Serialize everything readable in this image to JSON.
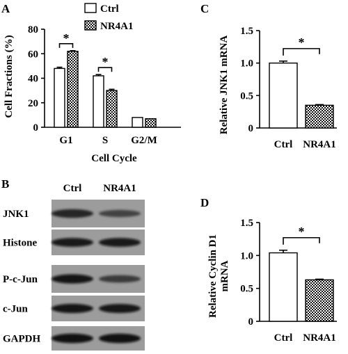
{
  "panel_labels": [
    "A",
    "B",
    "C",
    "D"
  ],
  "chart_data": [
    {
      "panel": "A",
      "type": "bar",
      "categories": [
        "G1",
        "S",
        "G2/M"
      ],
      "series": [
        {
          "name": "Ctrl",
          "values": [
            48,
            42,
            8
          ],
          "errors": [
            1,
            1,
            0
          ]
        },
        {
          "name": "NR4A1",
          "values": [
            62,
            30,
            7
          ],
          "errors": [
            0.5,
            1,
            0
          ]
        }
      ],
      "xlabel": "Cell Cycle",
      "ylabel": "Cell Fractions (%)",
      "ylim": [
        0,
        80
      ],
      "yticks": [
        0,
        20,
        40,
        60,
        80
      ],
      "significance": [
        {
          "category": "G1",
          "label": "*"
        },
        {
          "category": "S",
          "label": "*"
        }
      ],
      "legend": "top-right",
      "grid": false
    },
    {
      "panel": "C",
      "type": "bar",
      "categories": [
        "Ctrl",
        "NR4A1"
      ],
      "values": [
        1.0,
        0.35
      ],
      "errors": [
        0.03,
        0.01
      ],
      "ylabel": "Relative JNK1 mRNA",
      "ylim": [
        0,
        1.5
      ],
      "yticks": [
        0,
        0.5,
        1.0,
        1.5
      ],
      "ytick_labels": [
        "0",
        "0.5",
        "1.0",
        "1.5"
      ],
      "significance_label": "*",
      "grid": false
    },
    {
      "panel": "D",
      "type": "bar",
      "categories": [
        "Ctrl",
        "NR4A1"
      ],
      "values": [
        1.04,
        0.63
      ],
      "errors": [
        0.04,
        0.01
      ],
      "ylabel_lines": [
        "Relative Cyclin D1",
        "mRNA"
      ],
      "ylim": [
        0,
        1.5
      ],
      "yticks": [
        0,
        0.5,
        1.0,
        1.5
      ],
      "ytick_labels": [
        "0",
        "0.5",
        "1.0",
        "1.5"
      ],
      "significance_label": "*",
      "grid": false
    }
  ],
  "western_blot": {
    "columns": [
      "Ctrl",
      "NR4A1"
    ],
    "rows": [
      {
        "label": "JNK1",
        "intensity": [
          0.8,
          0.55
        ]
      },
      {
        "label": "Histone",
        "intensity": [
          0.85,
          0.85
        ]
      },
      {
        "label": "P-c-Jun",
        "intensity": [
          0.9,
          0.6
        ]
      },
      {
        "label": "c-Jun",
        "intensity": [
          0.9,
          0.88
        ]
      },
      {
        "label": "GAPDH",
        "intensity": [
          0.95,
          0.95
        ]
      }
    ]
  }
}
